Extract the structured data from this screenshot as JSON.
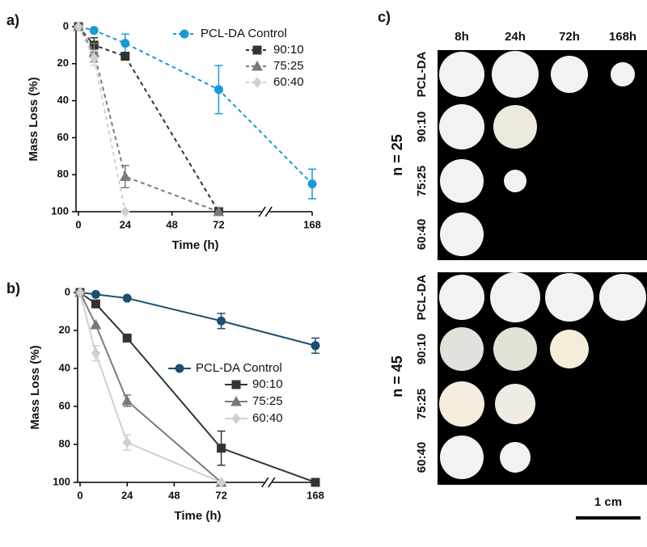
{
  "chart_data": [
    {
      "type": "line",
      "panel_label": "a)",
      "x_label": "Time (h)",
      "y_label": "Mass Loss (%)",
      "xlim": [
        0,
        168
      ],
      "xticks": [
        0,
        24,
        48,
        72,
        168
      ],
      "x_break": true,
      "ylim": [
        0,
        100
      ],
      "yticks": [
        0,
        20,
        40,
        60,
        80,
        100
      ],
      "y_inverted": true,
      "line_style": "dashed",
      "series": [
        {
          "name": "PCL-DA Control",
          "color": "#1a9ad6",
          "marker": "circle",
          "x": [
            0,
            8,
            24,
            72,
            168
          ],
          "values": [
            0,
            2,
            9,
            34,
            85
          ],
          "errors": [
            null,
            null,
            5,
            13,
            8
          ]
        },
        {
          "name": "90:10",
          "color": "#333333",
          "marker": "square",
          "x": [
            0,
            8,
            24,
            72
          ],
          "values": [
            0,
            10,
            16,
            100
          ],
          "errors": [
            null,
            4,
            2,
            null
          ]
        },
        {
          "name": "75:25",
          "color": "#7a7a7a",
          "marker": "triangle",
          "x": [
            0,
            8,
            24,
            72
          ],
          "values": [
            0,
            14,
            81,
            100
          ],
          "errors": [
            null,
            5,
            6,
            null
          ]
        },
        {
          "name": "60:40",
          "color": "#cfcfcf",
          "marker": "diamond",
          "x": [
            0,
            8,
            24
          ],
          "values": [
            0,
            17,
            100
          ],
          "errors": [
            null,
            4,
            null
          ]
        }
      ]
    },
    {
      "type": "line",
      "panel_label": "b)",
      "x_label": "Time (h)",
      "y_label": "Mass Loss (%)",
      "xlim": [
        0,
        168
      ],
      "xticks": [
        0,
        24,
        48,
        72,
        168
      ],
      "x_break": true,
      "ylim": [
        0,
        100
      ],
      "yticks": [
        0,
        20,
        40,
        60,
        80,
        100
      ],
      "y_inverted": true,
      "line_style": "solid",
      "series": [
        {
          "name": "PCL-DA Control",
          "color": "#1b4f72",
          "marker": "circle",
          "x": [
            0,
            8,
            24,
            72,
            168
          ],
          "values": [
            0,
            1,
            3,
            15,
            28
          ],
          "errors": [
            null,
            null,
            null,
            4,
            4
          ]
        },
        {
          "name": "90:10",
          "color": "#333333",
          "marker": "square",
          "x": [
            0,
            8,
            24,
            72,
            168
          ],
          "values": [
            0,
            6,
            24,
            82,
            100
          ],
          "errors": [
            null,
            null,
            null,
            9,
            null
          ]
        },
        {
          "name": "75:25",
          "color": "#7a7a7a",
          "marker": "triangle",
          "x": [
            0,
            8,
            24,
            72
          ],
          "values": [
            0,
            17,
            57,
            100
          ],
          "errors": [
            null,
            null,
            3,
            null
          ]
        },
        {
          "name": "60:40",
          "color": "#cfcfcf",
          "marker": "diamond",
          "x": [
            0,
            8,
            24,
            72
          ],
          "values": [
            0,
            32,
            79,
            100
          ],
          "errors": [
            null,
            4,
            4,
            null
          ]
        }
      ]
    }
  ],
  "panel_c": {
    "label": "c)",
    "columns": [
      "8h",
      "24h",
      "72h",
      "168h"
    ],
    "rows": [
      "PCL-DA",
      "90:10",
      "75:25",
      "60:40"
    ],
    "groups": [
      {
        "label": "n = 25",
        "color": "#1a9ad6"
      },
      {
        "label": "n = 45",
        "color": "#1b4f72"
      }
    ],
    "scale_bar": "1 cm"
  }
}
